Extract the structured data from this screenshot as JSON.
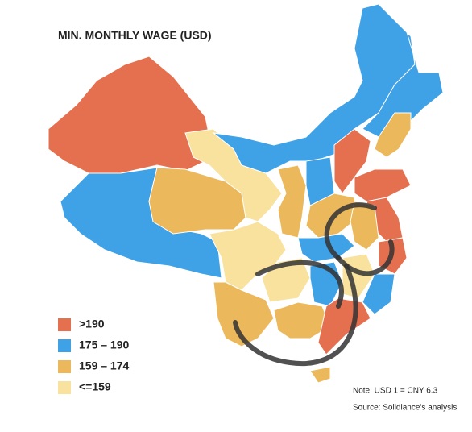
{
  "title": "MIN. MONTHLY WAGE (USD)",
  "legend": [
    {
      "label": ">190",
      "color": "#e4704f"
    },
    {
      "label": "175 – 190",
      "color": "#3fa1e6"
    },
    {
      "label": "159 – 174",
      "color": "#ecb85c"
    },
    {
      "label": "<=159",
      "color": "#f9e29e"
    }
  ],
  "notes": [
    "Note: USD 1 = CNY 6.3",
    "Source: Solidiance’s analysis"
  ]
}
